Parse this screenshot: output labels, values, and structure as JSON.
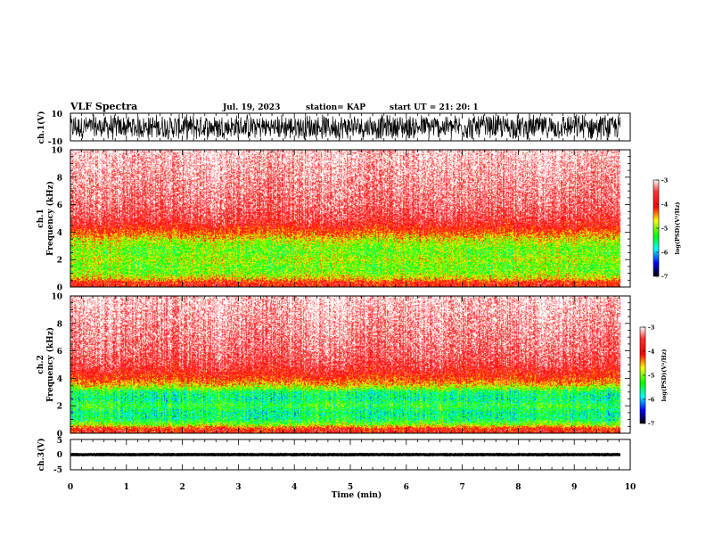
{
  "header": {
    "title": "VLF Spectra",
    "date": "Jul. 19, 2023",
    "station": "station= KAP",
    "start_ut": "start UT = 21: 20: 1"
  },
  "colorbar": {
    "label": "log(PSD)(V²/Hz)",
    "ticks": [
      "-3",
      "-4",
      "-5",
      "-6",
      "-7"
    ],
    "stops": [
      "#ffffff",
      "#ff0000",
      "#ffff00",
      "#00ff00",
      "#00ffff",
      "#0000ff",
      "#000000"
    ]
  },
  "chart_data": [
    {
      "type": "line",
      "ylabel": "ch.1(V)",
      "ylim": [
        -10,
        10
      ],
      "ytick_labels": [
        "10",
        "-10"
      ],
      "x_range": [
        0,
        9.82
      ],
      "approx_amplitude_V": 10
    },
    {
      "type": "heatmap",
      "ylabel_lines": [
        "ch.1",
        "Frequency (kHz)"
      ],
      "xlim": [
        0,
        10
      ],
      "ylim": [
        0,
        10
      ],
      "ytick_labels": [
        "0",
        "2",
        "4",
        "6",
        "8",
        "10"
      ],
      "clim": [
        -7,
        -3
      ],
      "colorbar_ticks": [
        "-3",
        "-4",
        "-5",
        "-6",
        "-7"
      ],
      "x_end_min": 9.82,
      "frequency_profile_kHz": [
        0.3,
        0.6,
        1.0,
        1.5,
        2.0,
        2.5,
        3.0,
        3.5,
        4.0,
        4.5,
        5.0,
        6.0,
        7.0,
        8.0,
        9.0,
        10.0
      ],
      "log_psd_profile": [
        -3.9,
        -4.6,
        -5.0,
        -5.1,
        -4.9,
        -5.1,
        -5.0,
        -4.7,
        -4.2,
        -3.8,
        -3.6,
        -3.4,
        -3.3,
        -3.2,
        -3.1,
        -3.0
      ]
    },
    {
      "type": "heatmap",
      "ylabel_lines": [
        "ch.2",
        "Frequency (kHz)"
      ],
      "xlim": [
        0,
        10
      ],
      "ylim": [
        0,
        10
      ],
      "ytick_labels": [
        "0",
        "2",
        "4",
        "6",
        "8",
        "10"
      ],
      "clim": [
        -7,
        -3
      ],
      "colorbar_ticks": [
        "-3",
        "-4",
        "-5",
        "-6",
        "-7"
      ],
      "x_end_min": 9.82,
      "frequency_profile_kHz": [
        0.3,
        0.6,
        1.0,
        1.5,
        2.0,
        2.5,
        3.0,
        3.5,
        4.0,
        4.5,
        5.0,
        6.0,
        7.0,
        8.0,
        9.0,
        10.0
      ],
      "log_psd_profile": [
        -3.9,
        -4.9,
        -5.5,
        -5.6,
        -5.3,
        -5.6,
        -5.5,
        -4.6,
        -4.1,
        -3.8,
        -3.6,
        -3.4,
        -3.3,
        -3.2,
        -3.1,
        -3.0
      ]
    },
    {
      "type": "line",
      "ylabel": "ch.3(V)",
      "ylim": [
        -5,
        5
      ],
      "ytick_labels": [
        "5",
        "0",
        "-5"
      ],
      "x_range": [
        0,
        9.82
      ],
      "approx_level_V": 0,
      "approx_amplitude_V": 0.6
    }
  ],
  "x_axis": {
    "xlabel": "Time (min)",
    "xlim": [
      0,
      10
    ],
    "tick_labels": [
      "0",
      "1",
      "2",
      "3",
      "4",
      "5",
      "6",
      "7",
      "8",
      "9",
      "10"
    ]
  }
}
